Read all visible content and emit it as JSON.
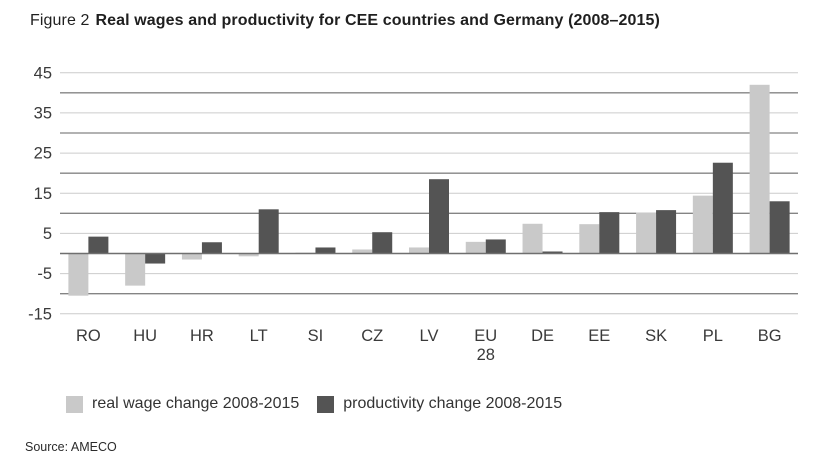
{
  "title": {
    "prefix": "Figure 2",
    "text": "Real wages and productivity for CEE countries and Germany (2008–2015)"
  },
  "source": "Source: AMECO",
  "legend": {
    "items": [
      {
        "label": "real wage change 2008-2015",
        "color": "#c9c9c9"
      },
      {
        "label": "productivity change 2008-2015",
        "color": "#545454"
      }
    ]
  },
  "colors": {
    "light_bar": "#c9c9c9",
    "dark_bar": "#545454",
    "gridline_light": "#cccccc",
    "gridline_dark": "#848484",
    "zero_line": "#6f6f6f",
    "axis_text": "#3a3a3a"
  },
  "chart_data": {
    "type": "bar",
    "title": "Real wages and productivity for CEE countries and Germany (2008–2015)",
    "categories": [
      "RO",
      "HU",
      "HR",
      "LT",
      "SI",
      "CZ",
      "LV",
      "EU 28",
      "DE",
      "EE",
      "SK",
      "PL",
      "BG"
    ],
    "series": [
      {
        "name": "real wage change 2008-2015",
        "color": "#c9c9c9",
        "values": [
          -10.5,
          -8,
          -1.5,
          -0.7,
          0.2,
          1,
          1.5,
          2.9,
          7.4,
          7.3,
          10.2,
          14.4,
          42
        ]
      },
      {
        "name": "productivity change 2008-2015",
        "color": "#545454",
        "values": [
          4.2,
          -2.5,
          2.8,
          11,
          1.5,
          5.3,
          18.5,
          3.5,
          0.5,
          10.3,
          10.8,
          22.6,
          13
        ]
      }
    ],
    "xlabel": "",
    "ylabel": "",
    "ylim": [
      -15,
      45
    ],
    "ytick_step": 5,
    "ytick_labels": [
      45,
      35,
      25,
      15,
      5,
      -5,
      -15
    ],
    "grid": true,
    "legend_position": "bottom"
  }
}
